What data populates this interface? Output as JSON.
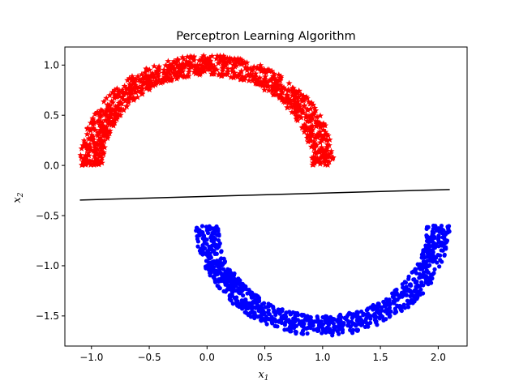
{
  "chart_data": {
    "type": "scatter",
    "title": "Perceptron Learning Algorithm",
    "xlabel": {
      "base": "x",
      "sub": "1"
    },
    "ylabel": {
      "base": "x",
      "sub": "2"
    },
    "xlim": [
      -1.23,
      2.25
    ],
    "ylim": [
      -1.8,
      1.18
    ],
    "x_ticks": [
      -1.0,
      -0.5,
      0.0,
      0.5,
      1.0,
      1.5,
      2.0
    ],
    "x_tick_labels": [
      "−1.0",
      "−0.5",
      "0.0",
      "0.5",
      "1.0",
      "1.5",
      "2.0"
    ],
    "y_ticks": [
      -1.5,
      -1.0,
      -0.5,
      0.0,
      0.5,
      1.0
    ],
    "y_tick_labels": [
      "−1.5",
      "−1.0",
      "−0.5",
      "0.0",
      "0.5",
      "1.0"
    ],
    "grid": false,
    "legend": "none",
    "series": [
      {
        "marker": "star",
        "color": "#ff0000",
        "shape": "upper half-moon",
        "center": [
          0.0,
          0.0
        ],
        "radius": 1.0,
        "angle_range_deg": [
          0,
          180
        ],
        "width": 0.2,
        "n_points": 1000
      },
      {
        "marker": "dot",
        "color": "#0000ff",
        "shape": "lower half-moon",
        "center": [
          1.0,
          -0.6
        ],
        "radius": 1.0,
        "angle_range_deg": [
          180,
          360
        ],
        "width": 0.2,
        "n_points": 1000
      }
    ],
    "decision_boundary": {
      "color": "#000000",
      "x": [
        -1.1,
        2.1
      ],
      "y": [
        -0.345,
        -0.24
      ]
    }
  }
}
